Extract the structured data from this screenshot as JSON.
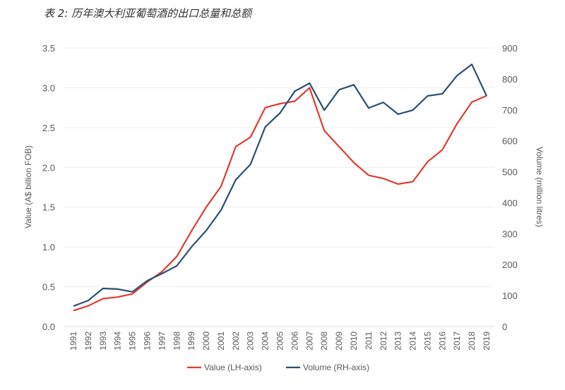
{
  "title": "表 2: 历年澳大利亚葡萄酒的出口总量和总额",
  "chart_data": {
    "type": "line",
    "title": "表 2: 历年澳大利亚葡萄酒的出口总量和总额",
    "x": [
      1991,
      1992,
      1993,
      1994,
      1995,
      1996,
      1997,
      1998,
      1999,
      2000,
      2001,
      2002,
      2003,
      2004,
      2005,
      2006,
      2007,
      2008,
      2009,
      2010,
      2011,
      2012,
      2013,
      2014,
      2015,
      2016,
      2017,
      2018,
      2019
    ],
    "ylabel": "Value (A$ billion FOB)",
    "y2label": "Volume (million litres)",
    "ylim": [
      0,
      3.5
    ],
    "y2lim": [
      0,
      900
    ],
    "yticks": [
      "0.0",
      "0.5",
      "1.0",
      "1.5",
      "2.0",
      "2.5",
      "3.0",
      "3.5"
    ],
    "y2ticks": [
      "0",
      "100",
      "200",
      "300",
      "400",
      "500",
      "600",
      "700",
      "800",
      "900"
    ],
    "grid": true,
    "legend_position": "bottom",
    "series": [
      {
        "name": "Value (LH-axis)",
        "axis": "left",
        "color": "#e03c31",
        "values": [
          0.2,
          0.26,
          0.35,
          0.37,
          0.41,
          0.56,
          0.69,
          0.88,
          1.2,
          1.5,
          1.76,
          2.26,
          2.38,
          2.75,
          2.8,
          2.83,
          3.0,
          2.46,
          2.26,
          2.06,
          1.9,
          1.86,
          1.79,
          1.82,
          2.07,
          2.22,
          2.55,
          2.82,
          2.9
        ]
      },
      {
        "name": "Volume (RH-axis)",
        "axis": "right",
        "color": "#2c4f73",
        "values": [
          66,
          84,
          123,
          121,
          112,
          148,
          171,
          196,
          257,
          310,
          376,
          474,
          524,
          645,
          690,
          760,
          786,
          699,
          765,
          781,
          706,
          724,
          686,
          699,
          745,
          752,
          811,
          847,
          745
        ]
      }
    ]
  }
}
